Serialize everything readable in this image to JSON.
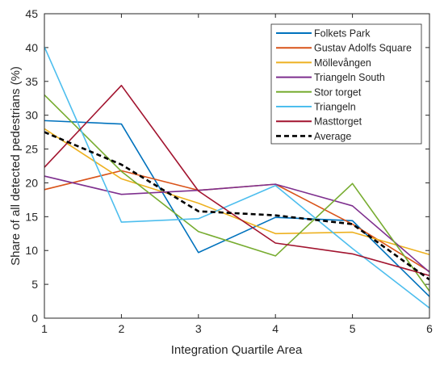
{
  "chart_data": {
    "type": "line",
    "title": "",
    "xlabel": "Integration Quartile Area",
    "ylabel": "Share of all detected pedestrians (%)",
    "x": [
      1,
      2,
      3,
      4,
      5,
      6
    ],
    "xlim": [
      1,
      6
    ],
    "ylim": [
      0,
      45
    ],
    "xticks": [
      "1",
      "2",
      "3",
      "4",
      "5",
      "6"
    ],
    "yticks": [
      "0",
      "5",
      "10",
      "15",
      "20",
      "25",
      "30",
      "35",
      "40",
      "45"
    ],
    "grid": false,
    "legend_position": "top-right",
    "series": [
      {
        "name": "Folkets Park",
        "color": "#0072BD",
        "dash": "solid",
        "values": [
          29.2,
          28.7,
          9.7,
          14.9,
          14.4,
          3.2
        ]
      },
      {
        "name": "Gustav Adolfs Square",
        "color": "#D95319",
        "dash": "solid",
        "values": [
          19.0,
          21.8,
          18.9,
          19.8,
          13.9,
          6.9
        ]
      },
      {
        "name": "Möllevången",
        "color": "#EDB120",
        "dash": "solid",
        "values": [
          28.0,
          20.6,
          17.0,
          12.5,
          12.7,
          9.4
        ]
      },
      {
        "name": "Triangeln South",
        "color": "#7E2F8E",
        "dash": "solid",
        "values": [
          21.0,
          18.3,
          18.9,
          19.8,
          16.6,
          6.8
        ]
      },
      {
        "name": "Stor torget",
        "color": "#77AC30",
        "dash": "solid",
        "values": [
          33.0,
          21.7,
          12.8,
          9.2,
          19.9,
          4.0
        ]
      },
      {
        "name": "Triangeln",
        "color": "#4DBEEE",
        "dash": "solid",
        "values": [
          40.1,
          14.2,
          14.7,
          19.6,
          10.3,
          1.5
        ]
      },
      {
        "name": "Masttorget",
        "color": "#A2142F",
        "dash": "solid",
        "values": [
          22.3,
          34.4,
          18.8,
          11.1,
          9.5,
          6.3
        ]
      },
      {
        "name": "Average",
        "color": "#000000",
        "dash": "dashed",
        "values": [
          27.5,
          22.7,
          15.8,
          15.2,
          13.9,
          5.7
        ]
      }
    ]
  }
}
